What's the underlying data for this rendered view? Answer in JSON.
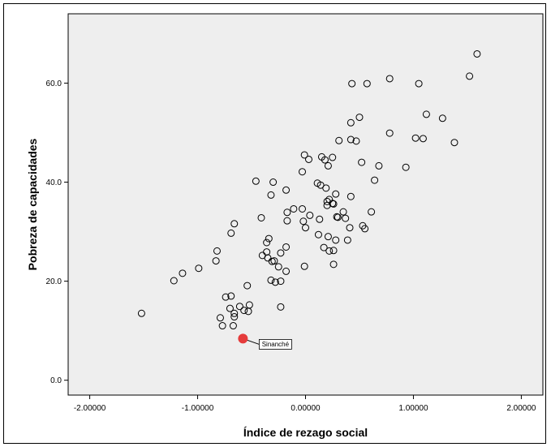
{
  "chart_data": {
    "type": "scatter",
    "xlabel": "Índice de rezago social",
    "ylabel": "Pobreza de capacidades",
    "xlim": [
      -2.2,
      2.2
    ],
    "ylim": [
      -3,
      74
    ],
    "xticks": [
      -2,
      -1,
      0,
      1,
      2
    ],
    "xtick_labels": [
      "-2.00000",
      "-1.00000",
      "0.00000",
      "1.00000",
      "2.00000"
    ],
    "yticks": [
      0,
      20,
      40,
      60
    ],
    "ytick_labels": [
      "0.0",
      "20.0",
      "40.0",
      "60.0"
    ],
    "grid": false,
    "background": "#eeeeee",
    "marker_color": "#000000",
    "highlight_color": "#e53b3b",
    "points": [
      {
        "x": -1.52,
        "y": 13.5
      },
      {
        "x": -1.22,
        "y": 20.1
      },
      {
        "x": -1.14,
        "y": 21.6
      },
      {
        "x": -0.99,
        "y": 22.6
      },
      {
        "x": -0.82,
        "y": 26.1
      },
      {
        "x": -0.83,
        "y": 24.1
      },
      {
        "x": -0.66,
        "y": 31.6
      },
      {
        "x": -0.69,
        "y": 29.7
      },
      {
        "x": -0.79,
        "y": 12.6
      },
      {
        "x": -0.77,
        "y": 11.0
      },
      {
        "x": -0.67,
        "y": 11.0
      },
      {
        "x": -0.7,
        "y": 14.5
      },
      {
        "x": -0.66,
        "y": 13.5
      },
      {
        "x": -0.66,
        "y": 12.8
      },
      {
        "x": -0.74,
        "y": 16.8
      },
      {
        "x": -0.69,
        "y": 17.0
      },
      {
        "x": -0.61,
        "y": 14.9
      },
      {
        "x": -0.57,
        "y": 14.1
      },
      {
        "x": -0.52,
        "y": 15.2
      },
      {
        "x": -0.53,
        "y": 13.9
      },
      {
        "x": -0.54,
        "y": 19.1
      },
      {
        "x": -0.46,
        "y": 40.2
      },
      {
        "x": -0.41,
        "y": 32.8
      },
      {
        "x": -0.4,
        "y": 25.2
      },
      {
        "x": -0.36,
        "y": 27.8
      },
      {
        "x": -0.34,
        "y": 28.6
      },
      {
        "x": -0.36,
        "y": 25.9
      },
      {
        "x": -0.35,
        "y": 24.7
      },
      {
        "x": -0.31,
        "y": 24.0
      },
      {
        "x": -0.29,
        "y": 24.1
      },
      {
        "x": -0.32,
        "y": 20.2
      },
      {
        "x": -0.28,
        "y": 19.8
      },
      {
        "x": -0.25,
        "y": 22.9
      },
      {
        "x": -0.23,
        "y": 20.0
      },
      {
        "x": -0.23,
        "y": 14.8
      },
      {
        "x": -0.23,
        "y": 25.7
      },
      {
        "x": -0.18,
        "y": 26.9
      },
      {
        "x": -0.18,
        "y": 22.0
      },
      {
        "x": -0.32,
        "y": 37.4
      },
      {
        "x": -0.3,
        "y": 40.0
      },
      {
        "x": -0.18,
        "y": 38.4
      },
      {
        "x": -0.17,
        "y": 33.9
      },
      {
        "x": -0.17,
        "y": 32.2
      },
      {
        "x": -0.11,
        "y": 34.6
      },
      {
        "x": -0.03,
        "y": 34.6
      },
      {
        "x": -0.02,
        "y": 32.1
      },
      {
        "x": 0.0,
        "y": 30.8
      },
      {
        "x": 0.04,
        "y": 33.3
      },
      {
        "x": -0.03,
        "y": 42.1
      },
      {
        "x": -0.01,
        "y": 45.5
      },
      {
        "x": 0.03,
        "y": 44.6
      },
      {
        "x": -0.01,
        "y": 23.0
      },
      {
        "x": 0.11,
        "y": 39.8
      },
      {
        "x": 0.14,
        "y": 39.4
      },
      {
        "x": 0.15,
        "y": 45.1
      },
      {
        "x": 0.18,
        "y": 44.5
      },
      {
        "x": 0.21,
        "y": 43.3
      },
      {
        "x": 0.25,
        "y": 45.0
      },
      {
        "x": 0.19,
        "y": 38.8
      },
      {
        "x": 0.2,
        "y": 35.3
      },
      {
        "x": 0.2,
        "y": 36.1
      },
      {
        "x": 0.22,
        "y": 36.5
      },
      {
        "x": 0.25,
        "y": 35.7
      },
      {
        "x": 0.26,
        "y": 35.6
      },
      {
        "x": 0.28,
        "y": 37.6
      },
      {
        "x": 0.13,
        "y": 32.5
      },
      {
        "x": 0.12,
        "y": 29.4
      },
      {
        "x": 0.17,
        "y": 26.8
      },
      {
        "x": 0.21,
        "y": 29.0
      },
      {
        "x": 0.22,
        "y": 26.1
      },
      {
        "x": 0.26,
        "y": 26.2
      },
      {
        "x": 0.26,
        "y": 23.4
      },
      {
        "x": 0.28,
        "y": 28.3
      },
      {
        "x": 0.29,
        "y": 33.0
      },
      {
        "x": 0.3,
        "y": 32.9
      },
      {
        "x": 0.35,
        "y": 34.0
      },
      {
        "x": 0.37,
        "y": 32.7
      },
      {
        "x": 0.39,
        "y": 28.3
      },
      {
        "x": 0.41,
        "y": 30.8
      },
      {
        "x": 0.42,
        "y": 37.1
      },
      {
        "x": 0.31,
        "y": 48.4
      },
      {
        "x": 0.42,
        "y": 48.6
      },
      {
        "x": 0.47,
        "y": 48.3
      },
      {
        "x": 0.42,
        "y": 52.0
      },
      {
        "x": 0.5,
        "y": 53.1
      },
      {
        "x": 0.52,
        "y": 44.0
      },
      {
        "x": 0.43,
        "y": 59.9
      },
      {
        "x": 0.57,
        "y": 59.9
      },
      {
        "x": 0.53,
        "y": 31.2
      },
      {
        "x": 0.55,
        "y": 30.6
      },
      {
        "x": 0.61,
        "y": 34.0
      },
      {
        "x": 0.64,
        "y": 40.4
      },
      {
        "x": 0.68,
        "y": 43.3
      },
      {
        "x": 0.78,
        "y": 49.9
      },
      {
        "x": 0.78,
        "y": 60.9
      },
      {
        "x": 0.93,
        "y": 43.0
      },
      {
        "x": 1.02,
        "y": 48.9
      },
      {
        "x": 1.05,
        "y": 59.9
      },
      {
        "x": 1.09,
        "y": 48.8
      },
      {
        "x": 1.12,
        "y": 53.7
      },
      {
        "x": 1.27,
        "y": 52.9
      },
      {
        "x": 1.38,
        "y": 48.0
      },
      {
        "x": 1.52,
        "y": 61.4
      },
      {
        "x": 1.59,
        "y": 65.9
      }
    ],
    "highlight": {
      "label": "Sinanché",
      "x": -0.58,
      "y": 8.4
    }
  }
}
